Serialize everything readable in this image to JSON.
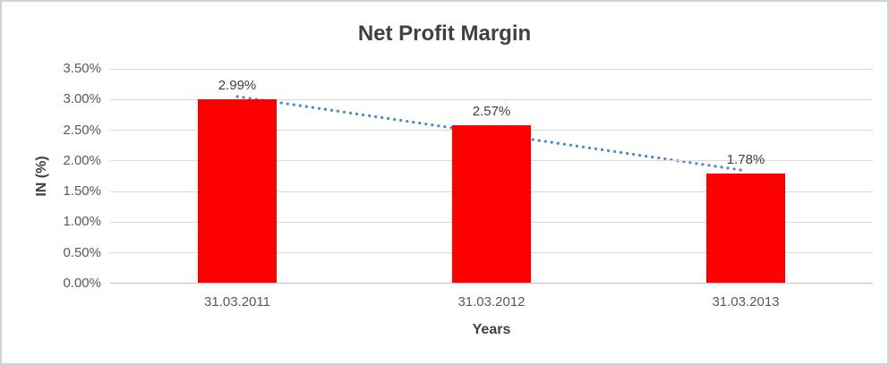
{
  "chart_data": {
    "type": "bar",
    "title": "Net Profit Margin",
    "xlabel": "Years",
    "ylabel": "IN (%)",
    "categories": [
      "31.03.2011",
      "31.03.2012",
      "31.03.2013"
    ],
    "values": [
      2.99,
      2.57,
      1.78
    ],
    "data_labels": [
      "2.99%",
      "2.57%",
      "1.78%"
    ],
    "ylim": [
      0,
      3.5
    ],
    "ytick_step": 0.5,
    "yticks": [
      "3.50%",
      "3.00%",
      "2.50%",
      "2.00%",
      "1.50%",
      "1.00%",
      "0.50%",
      "0.00%"
    ],
    "grid": true,
    "legend": "none",
    "bar_color": "#FF0000",
    "trendline": {
      "type": "linear",
      "style": "dotted",
      "color": "#4E8AC8",
      "endpoint_values": [
        3.05,
        1.84
      ]
    }
  }
}
